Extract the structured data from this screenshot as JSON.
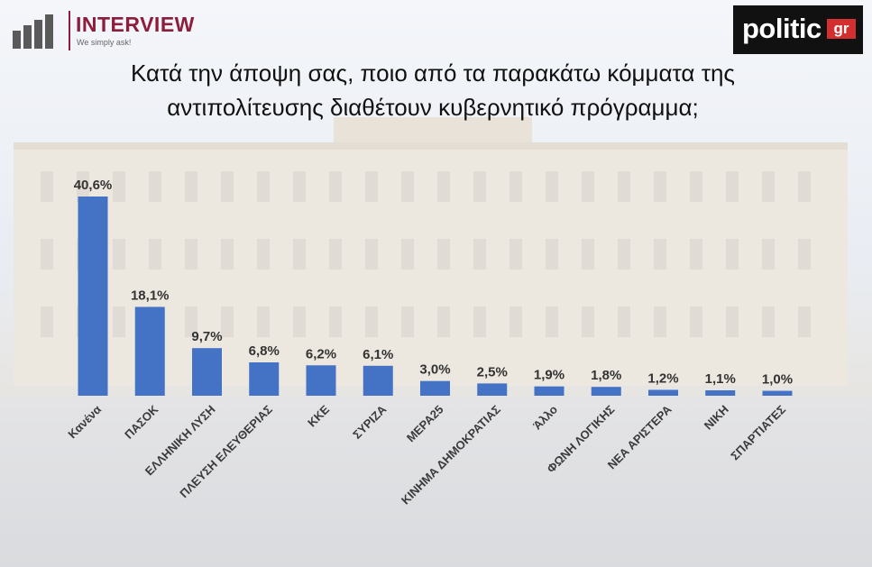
{
  "header": {
    "brand_name": "INTERVIEW",
    "brand_tagline": "We simply ask!",
    "partner_logo": "politic",
    "partner_logo_suffix": "gr"
  },
  "chart_data": {
    "type": "bar",
    "title_line1": "Κατά την άποψη σας, ποιο από τα παρακάτω κόμματα της",
    "title_line2": "αντιπολίτευσης διαθέτουν κυβερνητικό πρόγραμμα;",
    "categories": [
      "Κανένα",
      "ΠΑΣΟΚ",
      "ΕΛΛΗΝΙΚΗ ΛΥΣΗ",
      "ΠΛΕΥΣΗ ΕΛΕΥΘΕΡΙΑΣ",
      "ΚΚΕ",
      "ΣΥΡΙΖΑ",
      "ΜΕΡΑ25",
      "ΚΙΝΗΜΑ ΔΗΜΟΚΡΑΤΙΑΣ",
      "Άλλο",
      "ΦΩΝΗ ΛΟΓΙΚΗΣ",
      "ΝΕΑ ΑΡΙΣΤΕΡΑ",
      "ΝΙΚΗ",
      "ΣΠΑΡΤΙΑΤΕΣ"
    ],
    "values": [
      40.6,
      18.1,
      9.7,
      6.8,
      6.2,
      6.1,
      3.0,
      2.5,
      1.9,
      1.8,
      1.2,
      1.1,
      1.0
    ],
    "value_labels": [
      "40,6%",
      "18,1%",
      "9,7%",
      "6,8%",
      "6,2%",
      "6,1%",
      "3,0%",
      "2,5%",
      "1,9%",
      "1,8%",
      "1,2%",
      "1,1%",
      "1,0%"
    ],
    "ylim": [
      0,
      40.6
    ],
    "grid": false,
    "bar_color": "#4472c4"
  }
}
